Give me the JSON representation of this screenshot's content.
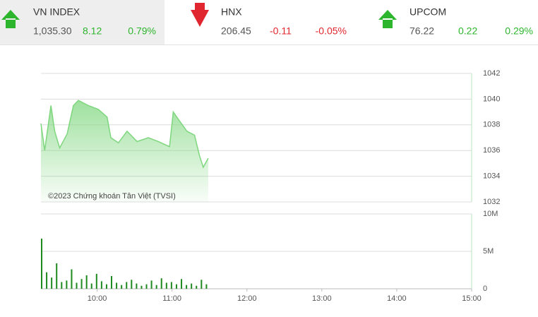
{
  "tickers": [
    {
      "name": "VN INDEX",
      "value": "1,035.30",
      "change": "8.12",
      "percent": "0.79%",
      "color": "#2db52d",
      "trend": "up"
    },
    {
      "name": "HNX",
      "value": "206.45",
      "change": "-0.11",
      "percent": "-0.05%",
      "color": "#e0262e",
      "trend": "down"
    },
    {
      "name": "UPCOM",
      "value": "76.22",
      "change": "0.22",
      "percent": "0.29%",
      "color": "#2db52d",
      "trend": "up"
    }
  ],
  "chart_data": [
    {
      "type": "area",
      "annotation": "©2023 Chứng khoán Tân Việt (TVSI)",
      "color": "#7ed67e",
      "x": [
        "09:15",
        "09:18",
        "09:23",
        "09:26",
        "09:30",
        "09:36",
        "09:41",
        "09:45",
        "09:53",
        "10:01",
        "10:08",
        "10:11",
        "10:17",
        "10:24",
        "10:32",
        "10:41",
        "10:49",
        "10:58",
        "11:01",
        "11:06",
        "11:12",
        "11:18",
        "11:22",
        "11:25",
        "11:29"
      ],
      "values": [
        1038.1,
        1036.0,
        1039.5,
        1037.5,
        1036.2,
        1037.3,
        1039.5,
        1039.9,
        1039.5,
        1039.2,
        1038.6,
        1037.0,
        1036.6,
        1037.5,
        1036.7,
        1037.0,
        1036.7,
        1036.3,
        1039.0,
        1038.3,
        1037.5,
        1037.2,
        1035.6,
        1034.7,
        1035.4
      ],
      "xlim": [
        "09:15",
        "15:00"
      ],
      "ylim": [
        1032,
        1042
      ],
      "yticks": [
        1032,
        1034,
        1036,
        1038,
        1040,
        1042
      ],
      "grid": true
    },
    {
      "type": "bar",
      "color": "#1f8a1f",
      "x": [
        "09:15",
        "09:19",
        "09:23",
        "09:27",
        "09:31",
        "09:35",
        "09:39",
        "09:43",
        "09:47",
        "09:51",
        "09:55",
        "09:59",
        "10:03",
        "10:07",
        "10:11",
        "10:15",
        "10:19",
        "10:23",
        "10:27",
        "10:31",
        "10:35",
        "10:39",
        "10:43",
        "10:47",
        "10:51",
        "10:55",
        "10:59",
        "11:03",
        "11:07",
        "11:11",
        "11:15",
        "11:19",
        "11:23",
        "11:27"
      ],
      "values": [
        6700000,
        2200000,
        1500000,
        3400000,
        900000,
        1100000,
        2600000,
        800000,
        1300000,
        1800000,
        700000,
        2000000,
        1000000,
        600000,
        1700000,
        800000,
        500000,
        900000,
        1200000,
        700000,
        400000,
        600000,
        1100000,
        500000,
        1400000,
        800000,
        900000,
        600000,
        1300000,
        500000,
        700000,
        400000,
        1200000,
        600000
      ],
      "xlim": [
        "09:15",
        "15:00"
      ],
      "xticks": [
        "10:00",
        "11:00",
        "12:00",
        "13:00",
        "14:00",
        "15:00"
      ],
      "ylim": [
        0,
        10000000
      ],
      "yticks": [
        0,
        {
          "value": 5000000,
          "label": "5M"
        },
        {
          "value": 10000000,
          "label": "10M"
        }
      ],
      "grid": true
    }
  ]
}
